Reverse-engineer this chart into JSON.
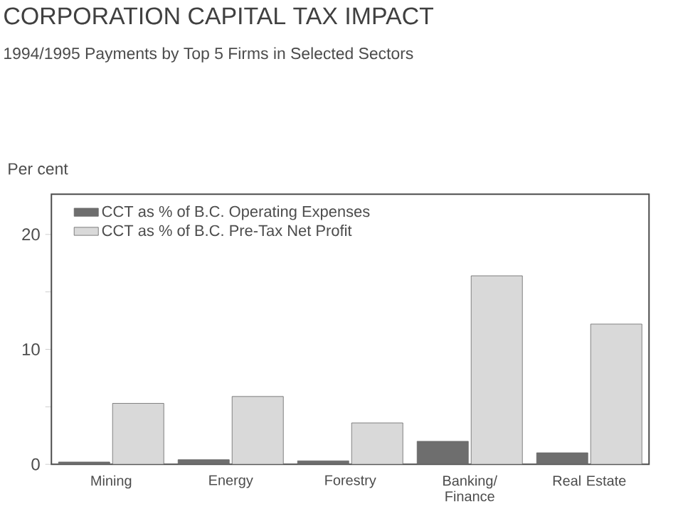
{
  "chart_data": {
    "type": "bar",
    "title": "CORPORATION CAPITAL TAX IMPACT",
    "subtitle": "1994/1995 Payments by Top 5 Firms in Selected Sectors",
    "ylabel": "Per cent",
    "categories": [
      "Mining",
      "Energy",
      "Forestry",
      "Banking/ Finance",
      "Real Estate"
    ],
    "series": [
      {
        "name": "CCT as % of B.C. Operating Expenses",
        "color": "#6e6e6e",
        "values": [
          0.2,
          0.4,
          0.3,
          2.0,
          1.0
        ]
      },
      {
        "name": "CCT as % of B.C. Pre-Tax Net Profit",
        "color": "#d9d9d9",
        "values": [
          5.3,
          5.9,
          3.6,
          16.4,
          12.2
        ]
      }
    ],
    "ylim": [
      0,
      23.5
    ],
    "yticks": [
      0,
      {
        "value": 5,
        "label": null
      },
      10,
      {
        "value": 15,
        "label": null
      },
      20
    ],
    "grid": false,
    "legend": "top left"
  }
}
